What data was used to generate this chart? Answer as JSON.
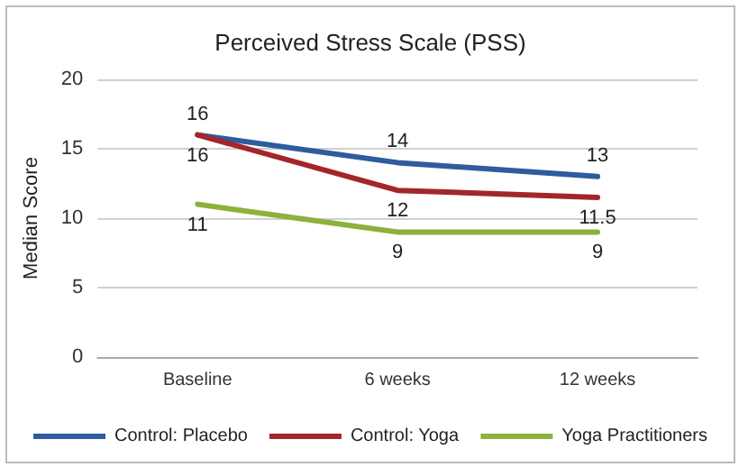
{
  "chart_data": {
    "type": "line",
    "title": "Perceived Stress Scale (PSS)",
    "ylabel": "Median Score",
    "categories": [
      "Baseline",
      "6 weeks",
      "12 weeks"
    ],
    "series": [
      {
        "name": "Control: Placebo",
        "color": "#2e5c9e",
        "values": [
          16,
          14,
          13
        ]
      },
      {
        "name": "Control: Yoga",
        "color": "#a3262a",
        "values": [
          16,
          12,
          11.5
        ]
      },
      {
        "name": "Yoga Practitioners",
        "color": "#8cb13c",
        "values": [
          11,
          9,
          9
        ]
      }
    ],
    "ylim": [
      0,
      20
    ],
    "yticks": [
      0,
      5,
      10,
      15,
      20
    ],
    "grid": "y",
    "legend": "bottom",
    "marker": "none",
    "line_style": "solid",
    "data_labels": true
  }
}
